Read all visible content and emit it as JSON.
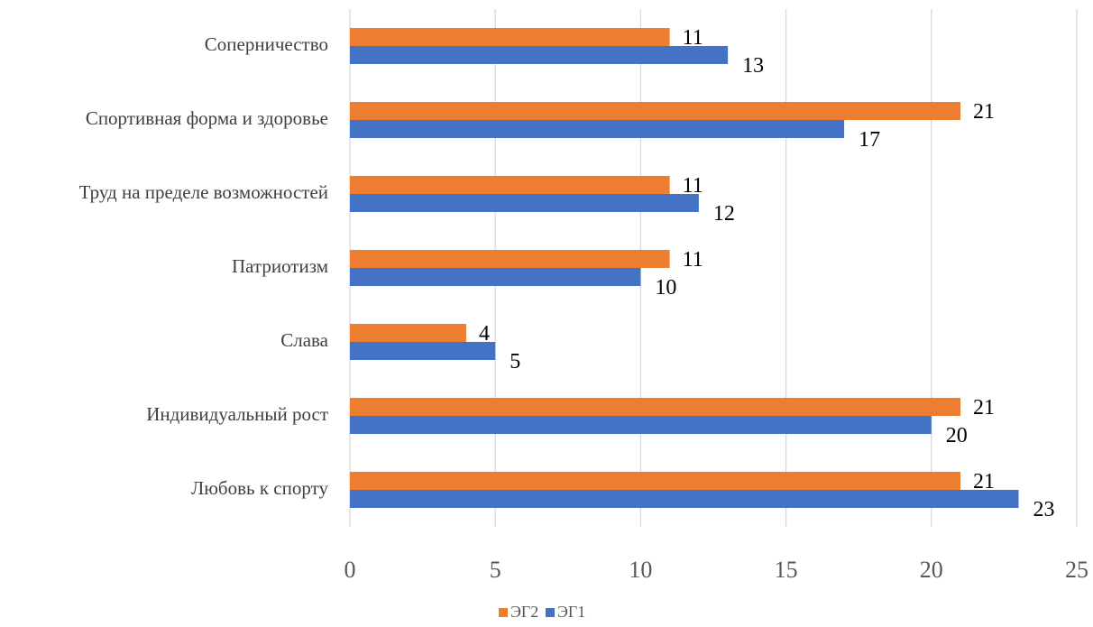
{
  "chart_data": {
    "type": "bar",
    "orientation": "horizontal",
    "categories": [
      "Соперничество",
      "Спортивная форма и здоровье",
      "Труд на пределе возможностей",
      "Патриотизм",
      "Слава",
      "Индивидуальный рост",
      "Любовь к спорту"
    ],
    "series": [
      {
        "name": "ЭГ2",
        "color": "#ed7d31",
        "values": [
          11,
          21,
          11,
          11,
          4,
          21,
          21
        ]
      },
      {
        "name": "ЭГ1",
        "color": "#4472c4",
        "values": [
          13,
          17,
          12,
          10,
          5,
          20,
          23
        ]
      }
    ],
    "xlim": [
      0,
      25
    ],
    "xticks": [
      "0",
      "5",
      "10",
      "15",
      "20",
      "25"
    ],
    "grid": true,
    "legend": "bottom-center",
    "title": "",
    "xlabel": "",
    "ylabel": ""
  }
}
